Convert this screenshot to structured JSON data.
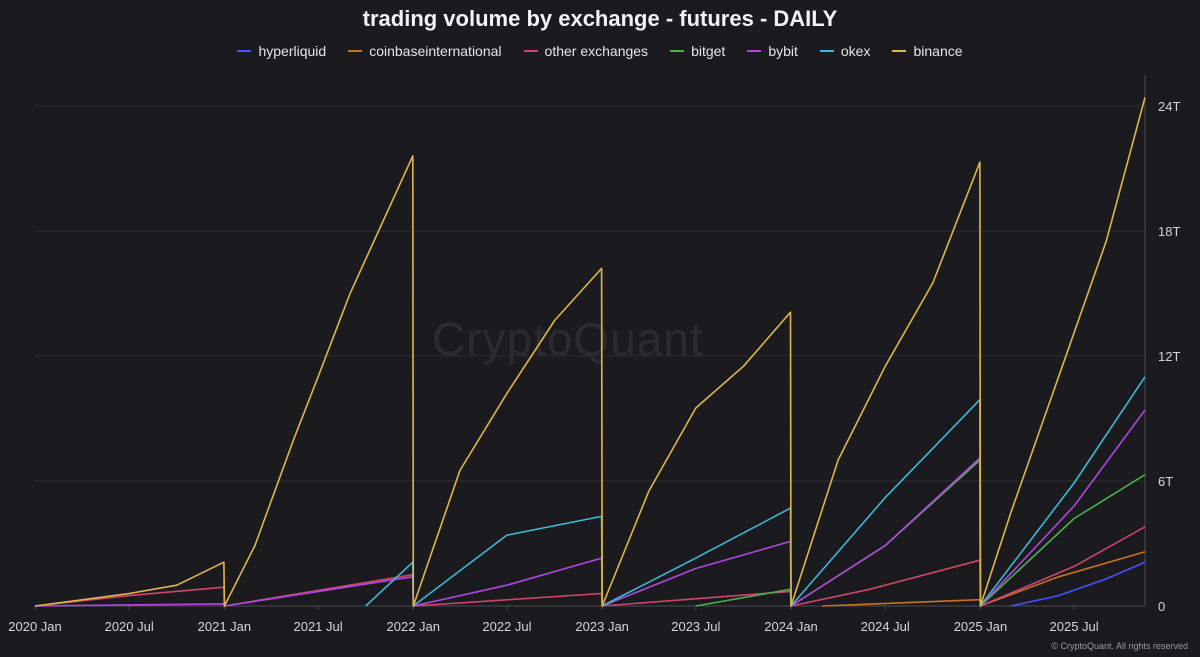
{
  "chart_data": {
    "type": "line",
    "title": "trading volume by exchange - futures - DAILY",
    "xlabel": "",
    "ylabel": "",
    "y_unit": "T",
    "ylim": [
      0,
      25
    ],
    "y_ticks": [
      0,
      6,
      12,
      18,
      24
    ],
    "y_tick_labels": [
      "0",
      "6T",
      "12T",
      "18T",
      "24T"
    ],
    "x_ticks": [
      "2020-01-01",
      "2020-07-01",
      "2021-01-01",
      "2021-07-01",
      "2022-01-01",
      "2022-07-01",
      "2023-01-01",
      "2023-07-01",
      "2024-01-01",
      "2024-07-01",
      "2025-01-01",
      "2025-07-01"
    ],
    "x_tick_labels": [
      "2020 Jan",
      "2020 Jul",
      "2021 Jan",
      "2021 Jul",
      "2022 Jan",
      "2022 Jul",
      "2023 Jan",
      "2023 Jul",
      "2024 Jan",
      "2024 Jul",
      "2025 Jan",
      "2025 Jul"
    ],
    "xlim": [
      "2020-01-01",
      "2025-11-15"
    ],
    "grid": "horizontal",
    "legend_position": "top-center",
    "series": [
      {
        "name": "hyperliquid",
        "color": "#4a52ff",
        "points": [
          [
            "2025-03-01",
            0
          ],
          [
            "2025-06-01",
            0.5
          ],
          [
            "2025-09-01",
            1.3
          ],
          [
            "2025-11-15",
            2.1
          ]
        ]
      },
      {
        "name": "coinbaseinternational",
        "color": "#c8741e",
        "points": [
          [
            "2024-03-01",
            0
          ],
          [
            "2024-12-31",
            0.3
          ],
          [
            "2025-01-01",
            0
          ],
          [
            "2025-06-01",
            1.4
          ],
          [
            "2025-11-15",
            2.6
          ]
        ]
      },
      {
        "name": "other exchanges",
        "color": "#d0456e",
        "points": [
          [
            "2020-01-01",
            0
          ],
          [
            "2020-07-01",
            0.5
          ],
          [
            "2020-12-31",
            0.9
          ],
          [
            "2021-01-01",
            0
          ],
          [
            "2021-12-31",
            1.5
          ],
          [
            "2022-01-01",
            0
          ],
          [
            "2022-12-31",
            0.6
          ],
          [
            "2023-01-01",
            0
          ],
          [
            "2023-12-31",
            0.7
          ],
          [
            "2024-01-01",
            0
          ],
          [
            "2024-06-01",
            0.8
          ],
          [
            "2024-12-31",
            2.2
          ],
          [
            "2025-01-01",
            0
          ],
          [
            "2025-07-01",
            1.9
          ],
          [
            "2025-11-15",
            3.8
          ]
        ]
      },
      {
        "name": "bitget",
        "color": "#4caf50",
        "points": [
          [
            "2023-07-01",
            0
          ],
          [
            "2023-12-31",
            0.8
          ],
          [
            "2024-01-01",
            0
          ],
          [
            "2024-07-01",
            2.9
          ],
          [
            "2024-12-31",
            7.0
          ],
          [
            "2025-01-01",
            0
          ],
          [
            "2025-07-01",
            4.2
          ],
          [
            "2025-11-15",
            6.3
          ]
        ]
      },
      {
        "name": "bybit",
        "color": "#b048e0",
        "points": [
          [
            "2020-01-01",
            0
          ],
          [
            "2020-12-31",
            0.1
          ],
          [
            "2021-01-01",
            0
          ],
          [
            "2021-12-31",
            1.4
          ],
          [
            "2022-01-01",
            0
          ],
          [
            "2022-07-01",
            1.0
          ],
          [
            "2022-12-31",
            2.3
          ],
          [
            "2023-01-01",
            0
          ],
          [
            "2023-07-01",
            1.8
          ],
          [
            "2023-12-31",
            3.1
          ],
          [
            "2024-01-01",
            0
          ],
          [
            "2024-07-01",
            2.9
          ],
          [
            "2024-12-31",
            7.1
          ],
          [
            "2025-01-01",
            0
          ],
          [
            "2025-07-01",
            4.8
          ],
          [
            "2025-11-15",
            9.4
          ]
        ]
      },
      {
        "name": "okex",
        "color": "#3fb8d6",
        "points": [
          [
            "2021-10-01",
            0
          ],
          [
            "2021-12-31",
            2.1
          ],
          [
            "2022-01-01",
            0
          ],
          [
            "2022-07-01",
            3.4
          ],
          [
            "2022-12-31",
            4.3
          ],
          [
            "2023-01-01",
            0
          ],
          [
            "2023-07-01",
            2.3
          ],
          [
            "2023-12-31",
            4.7
          ],
          [
            "2024-01-01",
            0
          ],
          [
            "2024-07-01",
            5.2
          ],
          [
            "2024-12-31",
            9.9
          ],
          [
            "2025-01-01",
            0
          ],
          [
            "2025-07-01",
            5.9
          ],
          [
            "2025-11-15",
            11.0
          ]
        ]
      },
      {
        "name": "binance",
        "color": "#e0b64c",
        "points": [
          [
            "2020-01-01",
            0
          ],
          [
            "2020-07-01",
            0.6
          ],
          [
            "2020-10-01",
            1.0
          ],
          [
            "2020-12-31",
            2.1
          ],
          [
            "2021-01-01",
            0
          ],
          [
            "2021-03-01",
            2.9
          ],
          [
            "2021-05-15",
            8.0
          ],
          [
            "2021-07-01",
            11.0
          ],
          [
            "2021-09-01",
            15.0
          ],
          [
            "2021-12-31",
            21.6
          ],
          [
            "2022-01-01",
            0
          ],
          [
            "2022-04-01",
            6.5
          ],
          [
            "2022-07-01",
            10.2
          ],
          [
            "2022-10-01",
            13.7
          ],
          [
            "2022-12-31",
            16.2
          ],
          [
            "2023-01-01",
            0
          ],
          [
            "2023-04-01",
            5.5
          ],
          [
            "2023-07-01",
            9.5
          ],
          [
            "2023-10-01",
            11.5
          ],
          [
            "2023-12-31",
            14.1
          ],
          [
            "2024-01-01",
            0
          ],
          [
            "2024-04-01",
            7.0
          ],
          [
            "2024-07-01",
            11.5
          ],
          [
            "2024-10-01",
            15.5
          ],
          [
            "2024-12-31",
            21.3
          ],
          [
            "2025-01-01",
            0
          ],
          [
            "2025-03-01",
            4.5
          ],
          [
            "2025-06-01",
            11.0
          ],
          [
            "2025-09-01",
            17.5
          ],
          [
            "2025-11-15",
            24.4
          ]
        ]
      }
    ]
  },
  "watermark": "CryptoQuant",
  "copyright": "© CryptoQuant. All rights reserved"
}
